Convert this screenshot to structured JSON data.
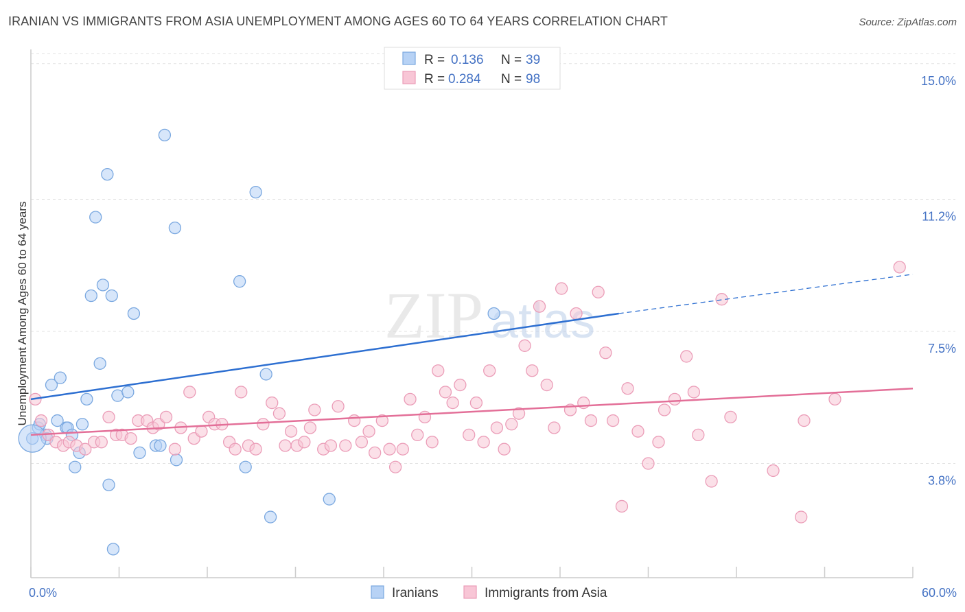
{
  "title": "IRANIAN VS IMMIGRANTS FROM ASIA UNEMPLOYMENT AMONG AGES 60 TO 64 YEARS CORRELATION CHART",
  "source": "Source: ZipAtlas.com",
  "watermark": {
    "zip": "ZIP",
    "atlas": "atlas"
  },
  "colors": {
    "iranians_fill": "#b7d2f5",
    "iranians_stroke": "#7aa8e0",
    "iranians_line": "#2d6fd1",
    "asia_fill": "#f8c6d6",
    "asia_stroke": "#eb9db8",
    "asia_line": "#e36f98",
    "tick": "#4472c4"
  },
  "legend": {
    "rows": [
      {
        "r_label": "R =",
        "r_value": "0.136",
        "n_label": "N =",
        "n_value": "39"
      },
      {
        "r_label": "R =",
        "r_value": "0.284",
        "n_label": "N =",
        "n_value": "98"
      }
    ]
  },
  "chart_data": {
    "type": "scatter",
    "title": "IRANIAN VS IMMIGRANTS FROM ASIA UNEMPLOYMENT AMONG AGES 60 TO 64 YEARS CORRELATION CHART",
    "xlabel": "",
    "ylabel": "Unemployment Among Ages 60 to 64 years",
    "xlim": [
      0,
      60
    ],
    "ylim": [
      0.6,
      15.4
    ],
    "x_tick_labels": [
      "0.0%",
      "60.0%"
    ],
    "y_ticks": [
      3.8,
      7.5,
      11.2,
      15.0
    ],
    "y_tick_labels": [
      "3.8%",
      "7.5%",
      "11.2%",
      "15.0%"
    ],
    "grid": true,
    "legend_position": "top-center",
    "series": [
      {
        "name": "Iranians",
        "r": 0.136,
        "n": 39,
        "trend": {
          "x0": 0,
          "y0": 5.6,
          "x1": 40,
          "y1": 8.0,
          "dash_to_x": 60,
          "dash_to_y": 9.1
        },
        "points": [
          [
            0.1,
            4.5
          ],
          [
            0.5,
            4.8
          ],
          [
            0.6,
            4.9
          ],
          [
            1.0,
            4.6
          ],
          [
            1.1,
            4.5
          ],
          [
            1.4,
            6.0
          ],
          [
            1.8,
            5.0
          ],
          [
            2.0,
            6.2
          ],
          [
            2.4,
            4.8
          ],
          [
            2.5,
            4.8
          ],
          [
            2.8,
            4.6
          ],
          [
            3.0,
            3.7
          ],
          [
            3.3,
            4.1
          ],
          [
            3.5,
            4.9
          ],
          [
            3.8,
            5.6
          ],
          [
            4.1,
            8.5
          ],
          [
            4.4,
            10.7
          ],
          [
            4.7,
            6.6
          ],
          [
            4.9,
            8.8
          ],
          [
            5.2,
            11.9
          ],
          [
            5.3,
            3.2
          ],
          [
            5.5,
            8.5
          ],
          [
            5.6,
            1.4
          ],
          [
            5.9,
            5.7
          ],
          [
            6.6,
            5.8
          ],
          [
            7.0,
            8.0
          ],
          [
            7.4,
            4.1
          ],
          [
            8.5,
            4.3
          ],
          [
            8.8,
            4.3
          ],
          [
            9.1,
            13.0
          ],
          [
            9.8,
            10.4
          ],
          [
            9.9,
            3.9
          ],
          [
            14.2,
            8.9
          ],
          [
            14.6,
            3.7
          ],
          [
            15.3,
            11.4
          ],
          [
            16.0,
            6.3
          ],
          [
            16.3,
            2.3
          ],
          [
            20.3,
            2.8
          ],
          [
            31.5,
            8.0
          ]
        ]
      },
      {
        "name": "Immigrants from Asia",
        "r": 0.284,
        "n": 98,
        "trend": {
          "x0": 0,
          "y0": 4.6,
          "x1": 60,
          "y1": 5.9
        },
        "points": [
          [
            0.3,
            5.6
          ],
          [
            0.7,
            5.0
          ],
          [
            1.2,
            4.6
          ],
          [
            1.7,
            4.4
          ],
          [
            2.2,
            4.3
          ],
          [
            2.6,
            4.4
          ],
          [
            3.1,
            4.3
          ],
          [
            3.7,
            4.2
          ],
          [
            4.3,
            4.4
          ],
          [
            4.8,
            4.4
          ],
          [
            5.3,
            5.1
          ],
          [
            5.8,
            4.6
          ],
          [
            6.2,
            4.6
          ],
          [
            6.8,
            4.5
          ],
          [
            7.3,
            5.0
          ],
          [
            7.9,
            5.0
          ],
          [
            8.3,
            4.8
          ],
          [
            8.7,
            4.9
          ],
          [
            9.2,
            5.1
          ],
          [
            9.8,
            4.2
          ],
          [
            10.2,
            4.8
          ],
          [
            10.8,
            5.8
          ],
          [
            11.1,
            4.5
          ],
          [
            11.6,
            4.7
          ],
          [
            12.1,
            5.1
          ],
          [
            12.5,
            4.9
          ],
          [
            13.0,
            4.9
          ],
          [
            13.5,
            4.4
          ],
          [
            13.9,
            4.2
          ],
          [
            14.3,
            5.8
          ],
          [
            14.8,
            4.3
          ],
          [
            15.3,
            4.2
          ],
          [
            15.8,
            4.9
          ],
          [
            16.4,
            5.5
          ],
          [
            16.9,
            5.2
          ],
          [
            17.3,
            4.3
          ],
          [
            17.7,
            4.7
          ],
          [
            18.1,
            4.3
          ],
          [
            18.6,
            4.4
          ],
          [
            19.0,
            4.8
          ],
          [
            19.3,
            5.3
          ],
          [
            19.9,
            4.2
          ],
          [
            20.4,
            4.3
          ],
          [
            20.9,
            5.4
          ],
          [
            21.4,
            4.3
          ],
          [
            22.0,
            5.0
          ],
          [
            22.5,
            4.4
          ],
          [
            23.0,
            4.7
          ],
          [
            23.4,
            4.1
          ],
          [
            23.9,
            5.0
          ],
          [
            24.4,
            4.2
          ],
          [
            24.8,
            3.7
          ],
          [
            25.3,
            4.2
          ],
          [
            25.8,
            5.6
          ],
          [
            26.3,
            4.6
          ],
          [
            26.8,
            5.1
          ],
          [
            27.3,
            4.4
          ],
          [
            27.7,
            6.4
          ],
          [
            28.2,
            5.8
          ],
          [
            28.7,
            5.5
          ],
          [
            29.2,
            6.0
          ],
          [
            29.8,
            4.6
          ],
          [
            30.3,
            5.5
          ],
          [
            30.8,
            4.4
          ],
          [
            31.2,
            6.4
          ],
          [
            31.7,
            4.8
          ],
          [
            32.2,
            4.2
          ],
          [
            32.7,
            4.9
          ],
          [
            33.2,
            5.2
          ],
          [
            33.6,
            7.1
          ],
          [
            34.1,
            6.4
          ],
          [
            34.6,
            8.2
          ],
          [
            35.1,
            6.0
          ],
          [
            35.6,
            4.8
          ],
          [
            36.1,
            8.7
          ],
          [
            36.7,
            5.3
          ],
          [
            37.1,
            8.0
          ],
          [
            37.6,
            5.5
          ],
          [
            38.1,
            5.0
          ],
          [
            38.6,
            8.6
          ],
          [
            39.1,
            6.9
          ],
          [
            39.6,
            5.0
          ],
          [
            40.2,
            2.6
          ],
          [
            40.6,
            5.9
          ],
          [
            41.3,
            4.7
          ],
          [
            42.0,
            3.8
          ],
          [
            42.7,
            4.4
          ],
          [
            43.1,
            5.3
          ],
          [
            43.8,
            5.6
          ],
          [
            44.6,
            6.8
          ],
          [
            45.1,
            5.8
          ],
          [
            45.4,
            4.6
          ],
          [
            46.3,
            3.3
          ],
          [
            47.0,
            8.4
          ],
          [
            47.6,
            5.1
          ],
          [
            50.5,
            3.6
          ],
          [
            52.4,
            2.3
          ],
          [
            52.6,
            5.0
          ],
          [
            54.7,
            5.6
          ],
          [
            59.1,
            9.3
          ]
        ]
      }
    ]
  }
}
